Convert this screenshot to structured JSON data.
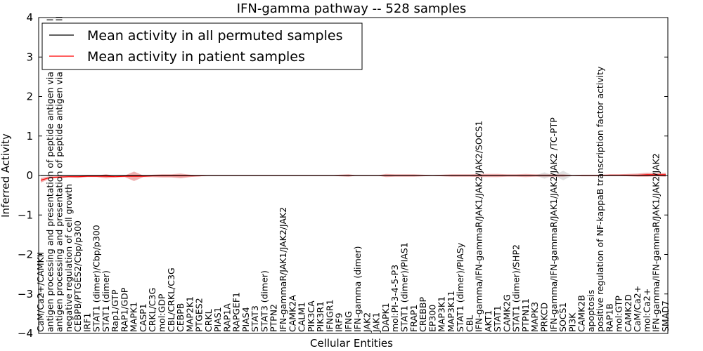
{
  "chart_data": {
    "type": "line",
    "title": "IFN-gamma pathway -- 528 samples",
    "xlabel": "Cellular Entities",
    "ylabel": "Inferred Activity",
    "ylim": [
      -4,
      4
    ],
    "yticks": [
      -4,
      -3,
      -2,
      -1,
      0,
      1,
      2,
      3,
      4
    ],
    "legend_position": "top-left",
    "categories": [
      "CaM/Ca2+/CAMKII",
      "antigen processing and presentation of peptide antigen via MHC class I",
      "antigen processing and presentation of peptide antigen via MHC class II",
      "negative regulation of cell growth",
      "CEBPB/PTGES2/Cbp/p300",
      "IRF1",
      "STAT1 (dimer)/Cbp/p300",
      "STAT1 (dimer)",
      "Rap1/GTP",
      "RAP1/GDP",
      "MAPK1",
      "CASP1",
      "CRKL/C3G",
      "mol:GDP",
      "CBL/CRKL/C3G",
      "CEBPB",
      "MAP2K1",
      "PTGES2",
      "CRKL",
      "PIAS1",
      "RAP1A",
      "RAPGEF1",
      "PIAS4",
      "STAT3",
      "STAT3 (dimer)",
      "PTPN2",
      "IFN-gammaR/JAK1/JAK2/JAK2",
      "CAMK2A",
      "CALM1",
      "PIK3CA",
      "PIK3R1",
      "IFNGR1",
      "IRF9",
      "IFNG",
      "IFN-gamma (dimer)",
      "JAK2",
      "JAK1",
      "DAPK1",
      "mol:PI-3-4-5-P3",
      "STAT1 (dimer)/PIAS1",
      "FRAP1",
      "CREBBP",
      "EP300",
      "MAP3K1",
      "MAP3K11",
      "STAT1 (dimer)/PIASy",
      "CBL",
      "IFN-gamma/IFN-gammaR/JAK1/JAK2/JAK2/SOCS1",
      "AKT1",
      "STAT1",
      "CAMK2G",
      "STAT1 (dimer)/SHP2",
      "PTPN11",
      "MAPK3",
      "PRKCD",
      "IFN-gamma/IFN-gammaR/JAK1/JAK2/JAK2  /TC-PTP",
      "SOCS1",
      "PI3K",
      "CAMK2B",
      "apoptosis",
      "positive regulation of NF-kappaB transcription factor activity",
      "RAP1B",
      "mol:GTP",
      "CAMK2D",
      "CaM/Ca2+",
      "mol:Ca2+",
      "IFN-gamma/IFN-gammaR/JAK1/JAK2/JAK2",
      "SMAD7"
    ],
    "series": [
      {
        "name": "Mean activity in all permuted samples",
        "color": "#000000",
        "values": [
          0,
          0,
          0,
          0,
          0,
          0,
          0,
          0,
          0,
          0,
          0,
          0,
          0,
          0,
          0,
          0,
          0,
          0,
          0,
          0,
          0,
          0,
          0,
          0,
          0,
          0,
          0,
          0,
          0,
          0,
          0,
          0,
          0,
          0,
          0,
          0,
          0,
          0,
          0,
          0,
          0,
          0,
          0,
          0,
          0,
          0,
          0,
          0,
          0,
          0,
          0,
          0,
          0,
          0,
          0,
          0,
          0,
          0,
          0,
          0,
          0,
          0,
          0,
          0,
          0,
          0,
          0,
          0
        ],
        "band_halfwidth": [
          0,
          0,
          0,
          0,
          0,
          0,
          0,
          0,
          0,
          0,
          0,
          0,
          0,
          0,
          0,
          0,
          0,
          0,
          0,
          0,
          0,
          0,
          0,
          0,
          0,
          0,
          0,
          0,
          0,
          0,
          0,
          0,
          0,
          0,
          0,
          0,
          0,
          0,
          0,
          0,
          0,
          0,
          0,
          0,
          0,
          0,
          0,
          0,
          0,
          0,
          0,
          0,
          0,
          0,
          0.08,
          0,
          0.12,
          0,
          0,
          0,
          0,
          0,
          0,
          0,
          0,
          0,
          0,
          0
        ]
      },
      {
        "name": "Mean activity in patient samples",
        "color": "#ff0000",
        "fill": "#e36f6f",
        "values": [
          -0.12,
          -0.05,
          -0.04,
          -0.03,
          -0.03,
          -0.02,
          -0.02,
          -0.02,
          -0.03,
          -0.02,
          -0.02,
          -0.02,
          -0.01,
          -0.01,
          -0.01,
          -0.01,
          -0.01,
          -0.01,
          0,
          0,
          0,
          0,
          0,
          0,
          0,
          0,
          0,
          0,
          0,
          0,
          0,
          0,
          0,
          0,
          0,
          0,
          0,
          0,
          0,
          0,
          0,
          0,
          0,
          0,
          0,
          0,
          0,
          0,
          0,
          0,
          0,
          0,
          0,
          0,
          0,
          0,
          0,
          0,
          0,
          0,
          0,
          0.01,
          0.01,
          0.01,
          0.01,
          0.02,
          0.02,
          0.02
        ],
        "band_halfwidth": [
          0.06,
          0.03,
          0.02,
          0.02,
          0.03,
          0.02,
          0.02,
          0.05,
          0.02,
          0.02,
          0.12,
          0.02,
          0.03,
          0.04,
          0.04,
          0.06,
          0.03,
          0.01,
          0.01,
          0.01,
          0.01,
          0.01,
          0.01,
          0.01,
          0.01,
          0.01,
          0,
          0,
          0,
          0,
          0,
          0,
          0.02,
          0.03,
          0,
          0,
          0,
          0.04,
          0.03,
          0.03,
          0.03,
          0.02,
          0.01,
          0.02,
          0.03,
          0.03,
          0.03,
          0.04,
          0.04,
          0.04,
          0.03,
          0.03,
          0.04,
          0.03,
          0.03,
          0.03,
          0.03,
          0.01,
          0.02,
          0.02,
          0.02,
          0.02,
          0.02,
          0.03,
          0.04,
          0.05,
          0.04,
          0.05
        ]
      }
    ]
  }
}
